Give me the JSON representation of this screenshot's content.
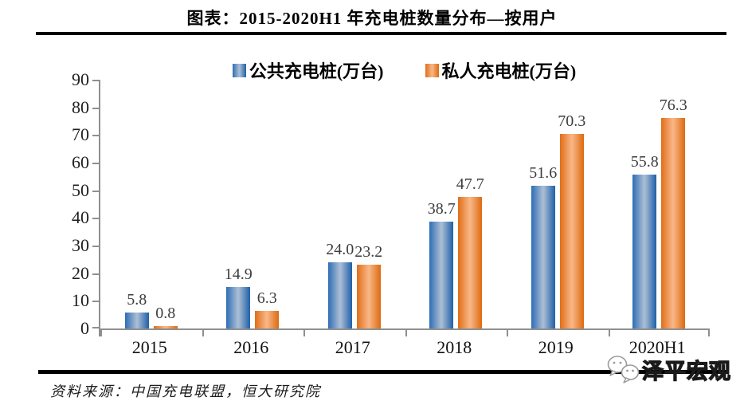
{
  "title": "图表：2015-2020H1 年充电桩数量分布—按用户",
  "source": {
    "text": "资料来源：中国充电联盟，恒大研究院"
  },
  "watermark": {
    "text": "泽平宏观",
    "icon": "wechat-icon"
  },
  "colors": {
    "public_edge": "#2e6db5",
    "public_light": "#a8bcd4",
    "public_edge2": "#1f60a9",
    "private_edge": "#e06e18",
    "private_light": "#f8b584",
    "private_edge2": "#dd6a10",
    "axis": "#8f8f8f",
    "value_label": "#3d3d3d",
    "rule": "#000000"
  },
  "chart_data": {
    "type": "bar",
    "title": "图表：2015-2020H1 年充电桩数量分布—按用户",
    "categories": [
      "2015",
      "2016",
      "2017",
      "2018",
      "2019",
      "2020H1"
    ],
    "series": [
      {
        "name": "公共充电桩(万台)",
        "color": "#2e6db5",
        "color_light": "#a8bcd4",
        "color_edge2": "#1f60a9",
        "values": [
          5.8,
          14.9,
          24.0,
          38.7,
          51.6,
          55.8
        ]
      },
      {
        "name": "私人充电桩(万台)",
        "color": "#e06e18",
        "color_light": "#f8b584",
        "color_edge2": "#dd6a10",
        "values": [
          0.8,
          6.3,
          23.2,
          47.7,
          70.3,
          76.3
        ]
      }
    ],
    "xlabel": "",
    "ylabel": "",
    "ylim": [
      0,
      90
    ],
    "ytick_step": 10,
    "grid": false,
    "legend_position": "top",
    "value_labels": true,
    "value_label_decimals": 1
  }
}
